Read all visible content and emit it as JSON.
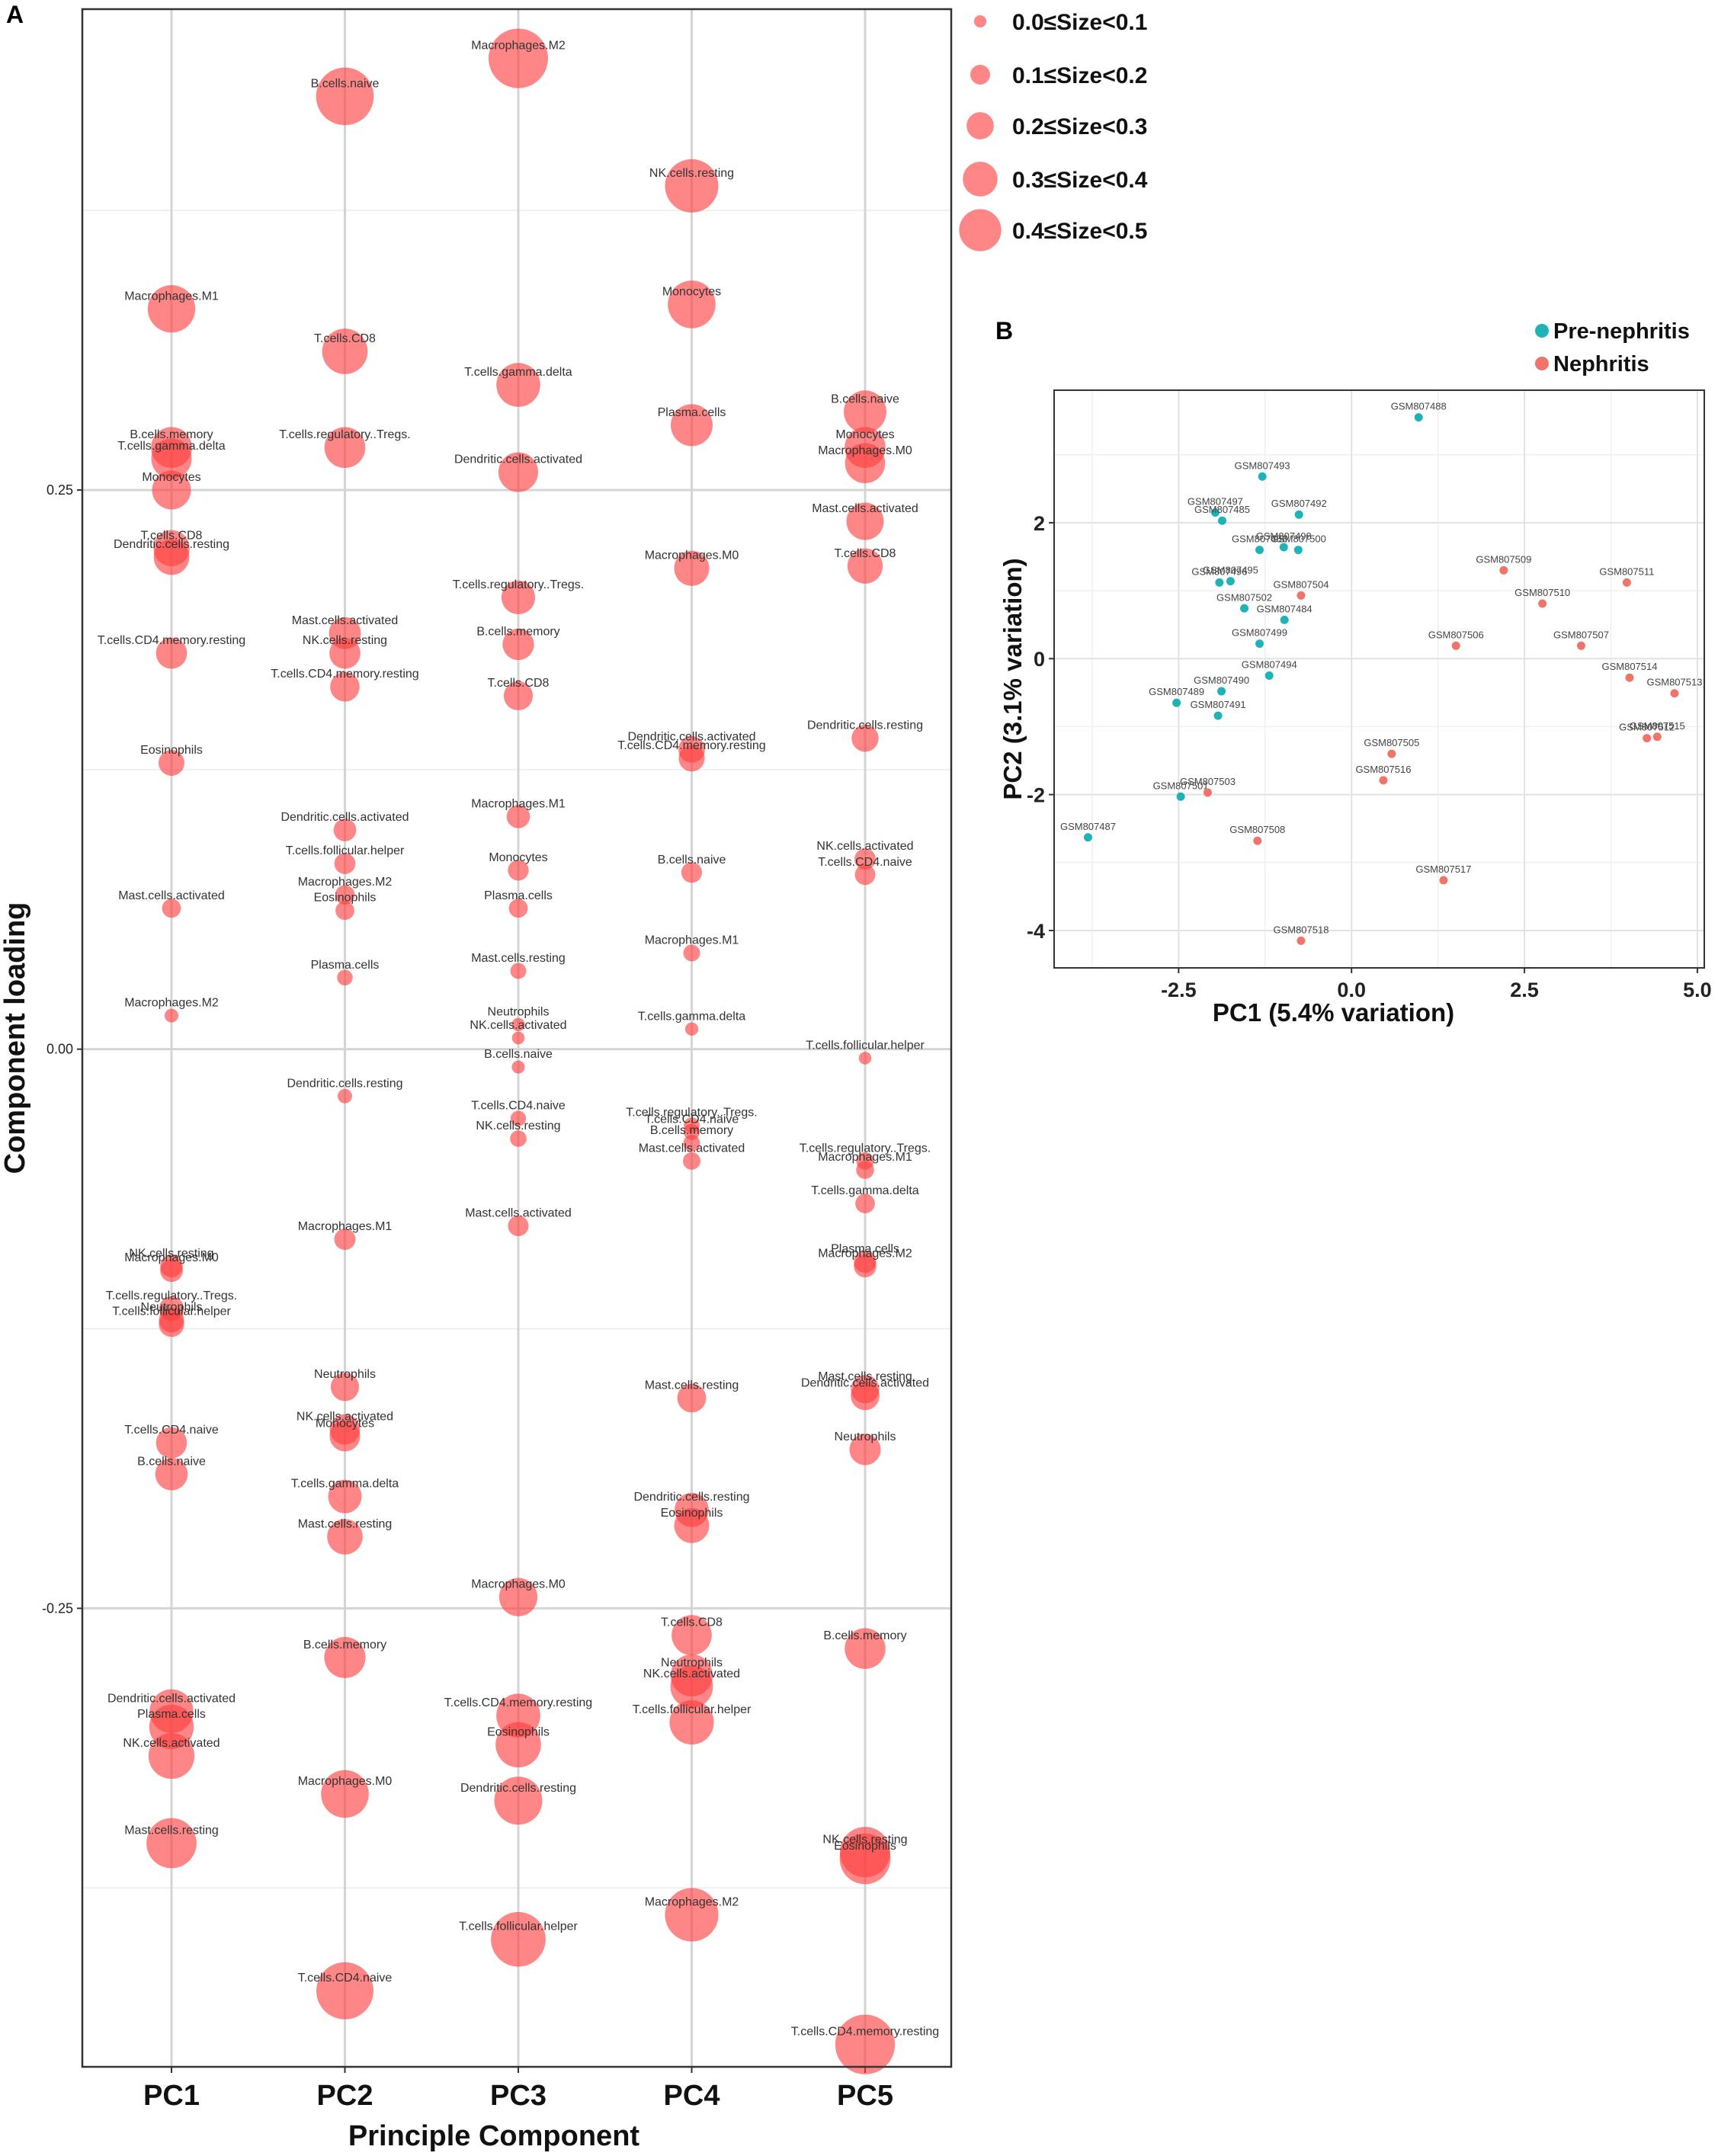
{
  "colors": {
    "loading": "#FF3B3B",
    "pre": "#1FB3B8",
    "nephritis": "#F0746A"
  },
  "chart_data": [
    {
      "panel": "A",
      "type": "scatter",
      "xlabel": "Principle Component",
      "ylabel": "Component loading",
      "categories": [
        "PC1",
        "PC2",
        "PC3",
        "PC4",
        "PC5"
      ],
      "ylim": [
        -0.455,
        0.465
      ],
      "yticks": [
        -0.25,
        0.0,
        0.25
      ],
      "yticklabels": [
        "-0.25",
        "0.00",
        "0.25"
      ],
      "legend": {
        "position": "top-right",
        "entries": [
          {
            "label": "0.0≤Size<0.1",
            "size": 0.05
          },
          {
            "label": "0.1≤Size<0.2",
            "size": 0.15
          },
          {
            "label": "0.2≤Size<0.3",
            "size": 0.25
          },
          {
            "label": "0.3≤Size<0.4",
            "size": 0.35
          },
          {
            "label": "0.4≤Size<0.5",
            "size": 0.45
          }
        ]
      },
      "series": [
        {
          "name": "PC1",
          "points": [
            {
              "label": "Macrophages.M1",
              "value": 0.331
            },
            {
              "label": "B.cells.memory",
              "value": 0.269
            },
            {
              "label": "T.cells.gamma.delta",
              "value": 0.264
            },
            {
              "label": "Monocytes",
              "value": 0.25
            },
            {
              "label": "T.cells.CD8",
              "value": 0.224
            },
            {
              "label": "Dendritic.cells.resting",
              "value": 0.22
            },
            {
              "label": "T.cells.CD4.memory.resting",
              "value": 0.177
            },
            {
              "label": "Eosinophils",
              "value": 0.128
            },
            {
              "label": "Mast.cells.activated",
              "value": 0.063
            },
            {
              "label": "Macrophages.M2",
              "value": 0.015
            },
            {
              "label": "NK.cells.resting",
              "value": -0.097
            },
            {
              "label": "Macrophages.M0",
              "value": -0.099
            },
            {
              "label": "T.cells.regulatory..Tregs.",
              "value": -0.116
            },
            {
              "label": "Neutrophils",
              "value": -0.121
            },
            {
              "label": "T.cells.follicular.helper",
              "value": -0.123
            },
            {
              "label": "T.cells.CD4.naive",
              "value": -0.176
            },
            {
              "label": "B.cells.naive",
              "value": -0.19
            },
            {
              "label": "Dendritic.cells.activated",
              "value": -0.296
            },
            {
              "label": "Plasma.cells",
              "value": -0.303
            },
            {
              "label": "NK.cells.activated",
              "value": -0.316
            },
            {
              "label": "Mast.cells.resting",
              "value": -0.355
            }
          ]
        },
        {
          "name": "PC2",
          "points": [
            {
              "label": "B.cells.naive",
              "value": 0.426
            },
            {
              "label": "T.cells.CD8",
              "value": 0.312
            },
            {
              "label": "T.cells.regulatory..Tregs.",
              "value": 0.269
            },
            {
              "label": "Mast.cells.activated",
              "value": 0.186
            },
            {
              "label": "NK.cells.resting",
              "value": 0.177
            },
            {
              "label": "T.cells.CD4.memory.resting",
              "value": 0.162
            },
            {
              "label": "Dendritic.cells.activated",
              "value": 0.098
            },
            {
              "label": "T.cells.follicular.helper",
              "value": 0.083
            },
            {
              "label": "Macrophages.M2",
              "value": 0.069
            },
            {
              "label": "Eosinophils",
              "value": 0.062
            },
            {
              "label": "Plasma.cells",
              "value": 0.032
            },
            {
              "label": "Dendritic.cells.resting",
              "value": -0.021
            },
            {
              "label": "Macrophages.M1",
              "value": -0.085
            },
            {
              "label": "Neutrophils",
              "value": -0.151
            },
            {
              "label": "NK.cells.activated",
              "value": -0.17
            },
            {
              "label": "Monocytes",
              "value": -0.173
            },
            {
              "label": "T.cells.gamma.delta",
              "value": -0.2
            },
            {
              "label": "Mast.cells.resting",
              "value": -0.218
            },
            {
              "label": "B.cells.memory",
              "value": -0.272
            },
            {
              "label": "Macrophages.M0",
              "value": -0.333
            },
            {
              "label": "T.cells.CD4.naive",
              "value": -0.421
            }
          ]
        },
        {
          "name": "PC3",
          "points": [
            {
              "label": "Macrophages.M2",
              "value": 0.443
            },
            {
              "label": "T.cells.gamma.delta",
              "value": 0.297
            },
            {
              "label": "Dendritic.cells.activated",
              "value": 0.258
            },
            {
              "label": "T.cells.regulatory..Tregs.",
              "value": 0.202
            },
            {
              "label": "B.cells.memory",
              "value": 0.181
            },
            {
              "label": "T.cells.CD8",
              "value": 0.158
            },
            {
              "label": "Macrophages.M1",
              "value": 0.104
            },
            {
              "label": "Monocytes",
              "value": 0.08
            },
            {
              "label": "Plasma.cells",
              "value": 0.063
            },
            {
              "label": "Mast.cells.resting",
              "value": 0.035
            },
            {
              "label": "Neutrophils",
              "value": 0.011
            },
            {
              "label": "NK.cells.activated",
              "value": 0.005
            },
            {
              "label": "B.cells.naive",
              "value": -0.008
            },
            {
              "label": "T.cells.CD4.naive",
              "value": -0.031
            },
            {
              "label": "NK.cells.resting",
              "value": -0.04
            },
            {
              "label": "Mast.cells.activated",
              "value": -0.079
            },
            {
              "label": "Macrophages.M0",
              "value": -0.245
            },
            {
              "label": "T.cells.CD4.memory.resting",
              "value": -0.298
            },
            {
              "label": "Eosinophils",
              "value": -0.311
            },
            {
              "label": "Dendritic.cells.resting",
              "value": -0.336
            },
            {
              "label": "T.cells.follicular.helper",
              "value": -0.398
            }
          ]
        },
        {
          "name": "PC4",
          "points": [
            {
              "label": "NK.cells.resting",
              "value": 0.386
            },
            {
              "label": "Monocytes",
              "value": 0.333
            },
            {
              "label": "Plasma.cells",
              "value": 0.279
            },
            {
              "label": "Macrophages.M0",
              "value": 0.215
            },
            {
              "label": "Dendritic.cells.activated",
              "value": 0.134
            },
            {
              "label": "T.cells.CD4.memory.resting",
              "value": 0.13
            },
            {
              "label": "B.cells.naive",
              "value": 0.079
            },
            {
              "label": "Macrophages.M1",
              "value": 0.043
            },
            {
              "label": "T.cells.gamma.delta",
              "value": 0.009
            },
            {
              "label": "T.cells.regulatory..Tregs.",
              "value": -0.034
            },
            {
              "label": "T.cells.CD4.naive",
              "value": -0.037
            },
            {
              "label": "B.cells.memory",
              "value": -0.042
            },
            {
              "label": "Mast.cells.activated",
              "value": -0.05
            },
            {
              "label": "Mast.cells.resting",
              "value": -0.156
            },
            {
              "label": "Dendritic.cells.resting",
              "value": -0.206
            },
            {
              "label": "Eosinophils",
              "value": -0.213
            },
            {
              "label": "T.cells.CD8",
              "value": -0.262
            },
            {
              "label": "Neutrophils",
              "value": -0.28
            },
            {
              "label": "NK.cells.activated",
              "value": -0.285
            },
            {
              "label": "T.cells.follicular.helper",
              "value": -0.301
            },
            {
              "label": "Macrophages.M2",
              "value": -0.387
            }
          ]
        },
        {
          "name": "PC5",
          "points": [
            {
              "label": "B.cells.naive",
              "value": 0.285
            },
            {
              "label": "Monocytes",
              "value": 0.269
            },
            {
              "label": "Macrophages.M0",
              "value": 0.262
            },
            {
              "label": "Mast.cells.activated",
              "value": 0.236
            },
            {
              "label": "T.cells.CD8",
              "value": 0.216
            },
            {
              "label": "Dendritic.cells.resting",
              "value": 0.139
            },
            {
              "label": "NK.cells.activated",
              "value": 0.085
            },
            {
              "label": "T.cells.CD4.naive",
              "value": 0.078
            },
            {
              "label": "T.cells.follicular.helper",
              "value": -0.004
            },
            {
              "label": "T.cells.regulatory..Tregs.",
              "value": -0.05
            },
            {
              "label": "Macrophages.M1",
              "value": -0.054
            },
            {
              "label": "T.cells.gamma.delta",
              "value": -0.069
            },
            {
              "label": "Plasma.cells",
              "value": -0.095
            },
            {
              "label": "Macrophages.M2",
              "value": -0.097
            },
            {
              "label": "Mast.cells.resting",
              "value": -0.152
            },
            {
              "label": "Dendritic.cells.activated",
              "value": -0.155
            },
            {
              "label": "Neutrophils",
              "value": -0.179
            },
            {
              "label": "B.cells.memory",
              "value": -0.268
            },
            {
              "label": "NK.cells.resting",
              "value": -0.359
            },
            {
              "label": "Eosinophils",
              "value": -0.362
            },
            {
              "label": "T.cells.CD4.memory.resting",
              "value": -0.445
            }
          ]
        }
      ]
    },
    {
      "panel": "B",
      "type": "scatter",
      "xlabel": "PC1 (5.4% variation)",
      "ylabel": "PC2 (3.1% variation)",
      "xlim": [
        -4.3,
        5.1
      ],
      "ylim": [
        -4.55,
        3.95
      ],
      "xticks": [
        -2.5,
        0.0,
        2.5,
        5.0
      ],
      "xticklabels": [
        "-2.5",
        "0.0",
        "2.5",
        "5.0"
      ],
      "yticks": [
        -4,
        -2,
        0,
        2
      ],
      "yticklabels": [
        "-4",
        "-2",
        "0",
        "2"
      ],
      "legend": {
        "position": "top-right",
        "entries": [
          "Pre-nephritis",
          "Nephritis"
        ]
      },
      "series": [
        {
          "name": "Pre-nephritis",
          "points": [
            {
              "label": "GSM807488",
              "x": 0.97,
              "y": 3.55
            },
            {
              "label": "GSM807493",
              "x": -1.29,
              "y": 2.68
            },
            {
              "label": "GSM807497",
              "x": -1.97,
              "y": 2.15
            },
            {
              "label": "GSM807485",
              "x": -1.87,
              "y": 2.03
            },
            {
              "label": "GSM807492",
              "x": -0.76,
              "y": 2.12
            },
            {
              "label": "GSM807486",
              "x": -1.33,
              "y": 1.6
            },
            {
              "label": "GSM807498",
              "x": -0.98,
              "y": 1.64
            },
            {
              "label": "GSM807500",
              "x": -0.77,
              "y": 1.6
            },
            {
              "label": "GSM807496",
              "x": -1.91,
              "y": 1.12
            },
            {
              "label": "GSM807495",
              "x": -1.75,
              "y": 1.14
            },
            {
              "label": "GSM807502",
              "x": -1.55,
              "y": 0.74
            },
            {
              "label": "GSM807484",
              "x": -0.97,
              "y": 0.57
            },
            {
              "label": "GSM807499",
              "x": -1.33,
              "y": 0.22
            },
            {
              "label": "GSM807494",
              "x": -1.19,
              "y": -0.25
            },
            {
              "label": "GSM807490",
              "x": -1.88,
              "y": -0.48
            },
            {
              "label": "GSM807489",
              "x": -2.53,
              "y": -0.65
            },
            {
              "label": "GSM807491",
              "x": -1.93,
              "y": -0.84
            },
            {
              "label": "GSM807501",
              "x": -2.47,
              "y": -2.03
            },
            {
              "label": "GSM807487",
              "x": -3.81,
              "y": -2.63
            }
          ]
        },
        {
          "name": "Nephritis",
          "points": [
            {
              "label": "GSM807509",
              "x": 2.2,
              "y": 1.3
            },
            {
              "label": "GSM807511",
              "x": 3.98,
              "y": 1.12
            },
            {
              "label": "GSM807504",
              "x": -0.73,
              "y": 0.93
            },
            {
              "label": "GSM807510",
              "x": 2.76,
              "y": 0.81
            },
            {
              "label": "GSM807506",
              "x": 1.51,
              "y": 0.19
            },
            {
              "label": "GSM807507",
              "x": 3.32,
              "y": 0.19
            },
            {
              "label": "GSM807514",
              "x": 4.02,
              "y": -0.28
            },
            {
              "label": "GSM807513",
              "x": 4.67,
              "y": -0.51
            },
            {
              "label": "GSM807512",
              "x": 4.27,
              "y": -1.17
            },
            {
              "label": "GSM807515",
              "x": 4.42,
              "y": -1.15
            },
            {
              "label": "GSM807505",
              "x": 0.58,
              "y": -1.4
            },
            {
              "label": "GSM807516",
              "x": 0.46,
              "y": -1.79
            },
            {
              "label": "GSM807503",
              "x": -2.08,
              "y": -1.97
            },
            {
              "label": "GSM807508",
              "x": -1.36,
              "y": -2.68
            },
            {
              "label": "GSM807517",
              "x": 1.33,
              "y": -3.26
            },
            {
              "label": "GSM807518",
              "x": -0.73,
              "y": -4.15
            }
          ]
        }
      ]
    }
  ]
}
